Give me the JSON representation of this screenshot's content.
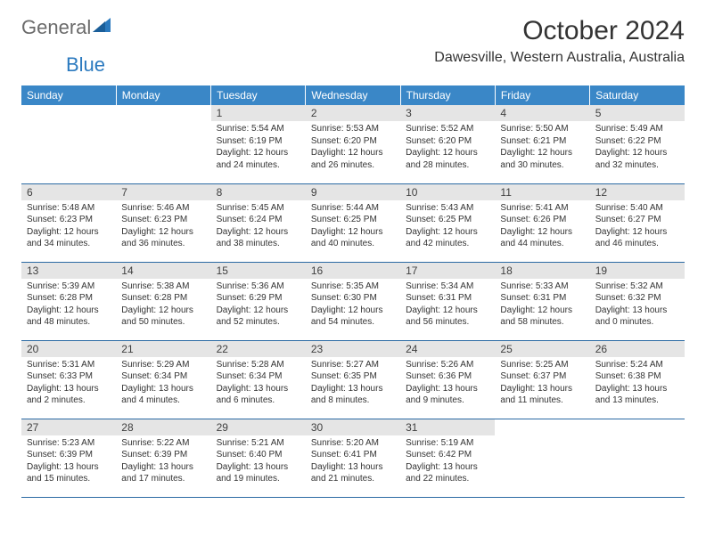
{
  "logo": {
    "general": "General",
    "blue": "Blue"
  },
  "title": "October 2024",
  "location": "Dawesville, Western Australia, Australia",
  "colors": {
    "header_bg": "#3a87c7",
    "header_text": "#ffffff",
    "daynum_bg": "#e5e5e5",
    "row_border": "#2b6aa3",
    "logo_gray": "#6b6b6b",
    "logo_blue": "#2b7abf"
  },
  "day_headers": [
    "Sunday",
    "Monday",
    "Tuesday",
    "Wednesday",
    "Thursday",
    "Friday",
    "Saturday"
  ],
  "weeks": [
    [
      null,
      null,
      {
        "n": "1",
        "sr": "5:54 AM",
        "ss": "6:19 PM",
        "dl": "12 hours and 24 minutes."
      },
      {
        "n": "2",
        "sr": "5:53 AM",
        "ss": "6:20 PM",
        "dl": "12 hours and 26 minutes."
      },
      {
        "n": "3",
        "sr": "5:52 AM",
        "ss": "6:20 PM",
        "dl": "12 hours and 28 minutes."
      },
      {
        "n": "4",
        "sr": "5:50 AM",
        "ss": "6:21 PM",
        "dl": "12 hours and 30 minutes."
      },
      {
        "n": "5",
        "sr": "5:49 AM",
        "ss": "6:22 PM",
        "dl": "12 hours and 32 minutes."
      }
    ],
    [
      {
        "n": "6",
        "sr": "5:48 AM",
        "ss": "6:23 PM",
        "dl": "12 hours and 34 minutes."
      },
      {
        "n": "7",
        "sr": "5:46 AM",
        "ss": "6:23 PM",
        "dl": "12 hours and 36 minutes."
      },
      {
        "n": "8",
        "sr": "5:45 AM",
        "ss": "6:24 PM",
        "dl": "12 hours and 38 minutes."
      },
      {
        "n": "9",
        "sr": "5:44 AM",
        "ss": "6:25 PM",
        "dl": "12 hours and 40 minutes."
      },
      {
        "n": "10",
        "sr": "5:43 AM",
        "ss": "6:25 PM",
        "dl": "12 hours and 42 minutes."
      },
      {
        "n": "11",
        "sr": "5:41 AM",
        "ss": "6:26 PM",
        "dl": "12 hours and 44 minutes."
      },
      {
        "n": "12",
        "sr": "5:40 AM",
        "ss": "6:27 PM",
        "dl": "12 hours and 46 minutes."
      }
    ],
    [
      {
        "n": "13",
        "sr": "5:39 AM",
        "ss": "6:28 PM",
        "dl": "12 hours and 48 minutes."
      },
      {
        "n": "14",
        "sr": "5:38 AM",
        "ss": "6:28 PM",
        "dl": "12 hours and 50 minutes."
      },
      {
        "n": "15",
        "sr": "5:36 AM",
        "ss": "6:29 PM",
        "dl": "12 hours and 52 minutes."
      },
      {
        "n": "16",
        "sr": "5:35 AM",
        "ss": "6:30 PM",
        "dl": "12 hours and 54 minutes."
      },
      {
        "n": "17",
        "sr": "5:34 AM",
        "ss": "6:31 PM",
        "dl": "12 hours and 56 minutes."
      },
      {
        "n": "18",
        "sr": "5:33 AM",
        "ss": "6:31 PM",
        "dl": "12 hours and 58 minutes."
      },
      {
        "n": "19",
        "sr": "5:32 AM",
        "ss": "6:32 PM",
        "dl": "13 hours and 0 minutes."
      }
    ],
    [
      {
        "n": "20",
        "sr": "5:31 AM",
        "ss": "6:33 PM",
        "dl": "13 hours and 2 minutes."
      },
      {
        "n": "21",
        "sr": "5:29 AM",
        "ss": "6:34 PM",
        "dl": "13 hours and 4 minutes."
      },
      {
        "n": "22",
        "sr": "5:28 AM",
        "ss": "6:34 PM",
        "dl": "13 hours and 6 minutes."
      },
      {
        "n": "23",
        "sr": "5:27 AM",
        "ss": "6:35 PM",
        "dl": "13 hours and 8 minutes."
      },
      {
        "n": "24",
        "sr": "5:26 AM",
        "ss": "6:36 PM",
        "dl": "13 hours and 9 minutes."
      },
      {
        "n": "25",
        "sr": "5:25 AM",
        "ss": "6:37 PM",
        "dl": "13 hours and 11 minutes."
      },
      {
        "n": "26",
        "sr": "5:24 AM",
        "ss": "6:38 PM",
        "dl": "13 hours and 13 minutes."
      }
    ],
    [
      {
        "n": "27",
        "sr": "5:23 AM",
        "ss": "6:39 PM",
        "dl": "13 hours and 15 minutes."
      },
      {
        "n": "28",
        "sr": "5:22 AM",
        "ss": "6:39 PM",
        "dl": "13 hours and 17 minutes."
      },
      {
        "n": "29",
        "sr": "5:21 AM",
        "ss": "6:40 PM",
        "dl": "13 hours and 19 minutes."
      },
      {
        "n": "30",
        "sr": "5:20 AM",
        "ss": "6:41 PM",
        "dl": "13 hours and 21 minutes."
      },
      {
        "n": "31",
        "sr": "5:19 AM",
        "ss": "6:42 PM",
        "dl": "13 hours and 22 minutes."
      },
      null,
      null
    ]
  ],
  "labels": {
    "sunrise": "Sunrise:",
    "sunset": "Sunset:",
    "daylight": "Daylight:"
  }
}
